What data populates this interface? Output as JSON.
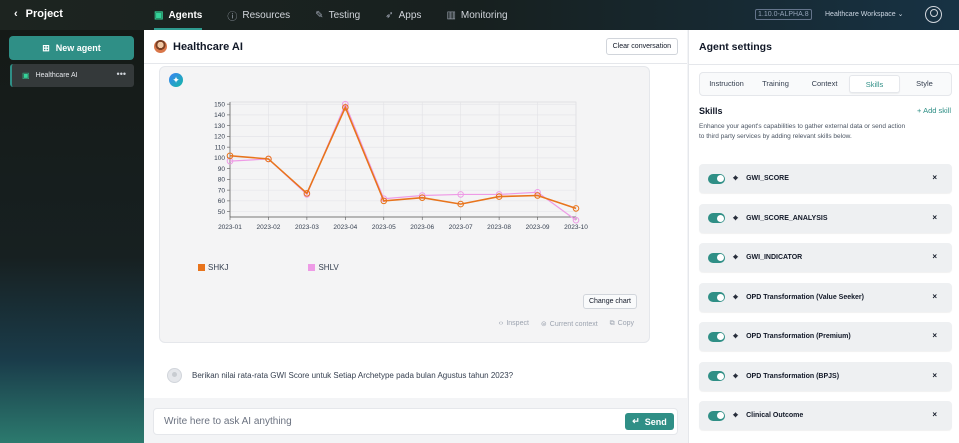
{
  "topbar": {
    "back_label": "Project",
    "nav": [
      {
        "label": "Agents",
        "icon": "chat-icon"
      },
      {
        "label": "Resources",
        "icon": "info-icon"
      },
      {
        "label": "Testing",
        "icon": "pencil-icon"
      },
      {
        "label": "Apps",
        "icon": "rocket-icon"
      },
      {
        "label": "Monitoring",
        "icon": "bar-chart-icon"
      }
    ],
    "version": "1.10.0-ALPHA.8",
    "workspace": "Healthcare Workspace",
    "active_nav_color": "#2f9b8f"
  },
  "sidebar": {
    "new_agent_label": "New agent",
    "agents": [
      {
        "label": "Healthcare AI"
      }
    ],
    "accent": "#2f8f86"
  },
  "chat": {
    "title": "Healthcare AI",
    "clear_label": "Clear conversation",
    "change_chart_label": "Change chart",
    "actions": {
      "inspect": "Inspect",
      "context": "Current context",
      "copy": "Copy"
    },
    "user_message": "Berikan nilai rata-rata GWI Score untuk Setiap Archetype pada bulan Agustus tahun 2023?",
    "input_placeholder": "Write here to ask AI anything",
    "send_label": "Send"
  },
  "chart_data": {
    "type": "line",
    "x": [
      "2023-01",
      "2023-02",
      "2023-03",
      "2023-04",
      "2023-05",
      "2023-06",
      "2023-07",
      "2023-08",
      "2023-09",
      "2023-10"
    ],
    "ylim": [
      45,
      152
    ],
    "yticks": [
      50,
      60,
      70,
      80,
      90,
      100,
      110,
      120,
      130,
      140,
      150
    ],
    "grid": true,
    "legend_position": "bottom-left",
    "series": [
      {
        "name": "SHKJ",
        "color": "#e8741c",
        "values": [
          102,
          99,
          67,
          147,
          60,
          63,
          57,
          64,
          65,
          53
        ]
      },
      {
        "name": "SHLV",
        "color": "#ee9be6",
        "values": [
          97,
          99,
          66,
          150,
          62,
          65,
          66,
          66,
          68,
          42
        ]
      }
    ]
  },
  "settings": {
    "title": "Agent settings",
    "tabs": [
      "Instruction",
      "Training",
      "Context",
      "Skills",
      "Style"
    ],
    "active_tab": "Skills",
    "skills_heading": "Skills",
    "add_skill_label": "Add skill",
    "description": "Enhance your agent's capabilities to gather external data or send action to third party services by adding relevant skills below.",
    "skills": [
      {
        "name": "GWI_SCORE",
        "enabled": true
      },
      {
        "name": "GWI_SCORE_ANALYSIS",
        "enabled": true
      },
      {
        "name": "GWI_INDICATOR",
        "enabled": true
      },
      {
        "name": "OPD Transformation (Value Seeker)",
        "enabled": true
      },
      {
        "name": "OPD Transformation (Premium)",
        "enabled": true
      },
      {
        "name": "OPD Transformation (BPJS)",
        "enabled": true
      },
      {
        "name": "Clinical Outcome",
        "enabled": true
      }
    ]
  }
}
